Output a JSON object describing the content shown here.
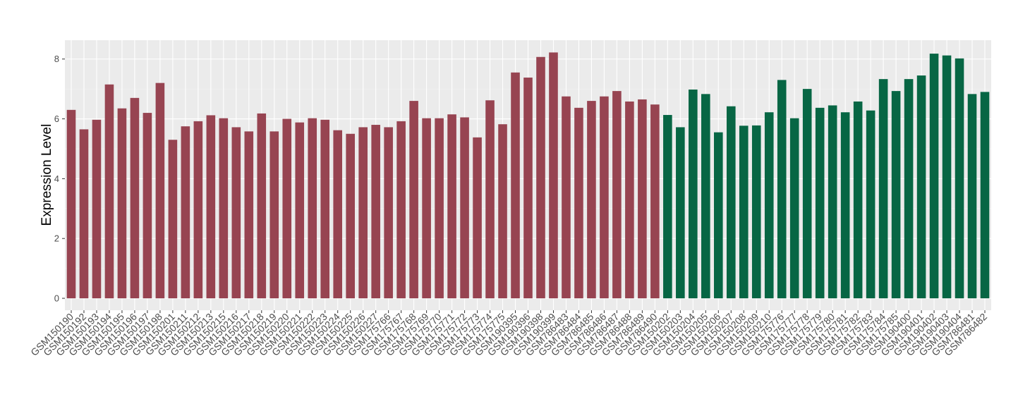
{
  "chart_data": {
    "type": "bar",
    "y_label": "Expression Level",
    "categories": [
      "GSM150190",
      "GSM150192",
      "GSM150193",
      "GSM150194",
      "GSM150195",
      "GSM150196",
      "GSM150197",
      "GSM150198",
      "GSM150201",
      "GSM150211",
      "GSM150212",
      "GSM150213",
      "GSM150215",
      "GSM150216",
      "GSM150217",
      "GSM150218",
      "GSM150219",
      "GSM150220",
      "GSM150221",
      "GSM150222",
      "GSM150223",
      "GSM150224",
      "GSM150225",
      "GSM150226",
      "GSM150227",
      "GSM175766",
      "GSM175767",
      "GSM175768",
      "GSM175769",
      "GSM175770",
      "GSM175771",
      "GSM175772",
      "GSM175773",
      "GSM175774",
      "GSM175775",
      "GSM190395",
      "GSM190396",
      "GSM190398",
      "GSM190399",
      "GSM786483",
      "GSM786484",
      "GSM786485",
      "GSM786486",
      "GSM786487",
      "GSM786488",
      "GSM786489",
      "GSM786490",
      "GSM150202",
      "GSM150203",
      "GSM150204",
      "GSM150205",
      "GSM150206",
      "GSM150207",
      "GSM150208",
      "GSM150209",
      "GSM150210",
      "GSM175776",
      "GSM175777",
      "GSM175778",
      "GSM175779",
      "GSM175780",
      "GSM175781",
      "GSM175782",
      "GSM175783",
      "GSM175784",
      "GSM175785",
      "GSM190400",
      "GSM190401",
      "GSM190402",
      "GSM190403",
      "GSM190404",
      "GSM786481",
      "GSM786482"
    ],
    "series": [
      {
        "color": "#974451",
        "values": [
          6.3,
          5.65,
          5.97,
          7.15,
          6.35,
          6.7,
          6.2,
          7.2,
          5.3,
          5.75,
          5.92,
          6.12,
          6.02,
          5.72,
          5.58,
          6.18,
          5.58,
          6.0,
          5.88,
          6.02,
          5.97,
          5.62,
          5.5,
          5.72,
          5.8,
          5.72,
          5.92,
          6.6,
          6.02,
          6.02,
          6.15,
          6.05,
          5.38,
          6.62,
          5.82,
          7.55,
          7.38,
          8.07,
          8.22,
          6.75,
          6.37,
          6.6,
          6.75,
          6.93,
          6.58,
          6.65,
          6.48,
          null,
          null,
          null,
          null,
          null,
          null,
          null,
          null,
          null,
          null,
          null,
          null,
          null,
          null,
          null,
          null,
          null,
          null,
          null,
          null,
          null,
          null,
          null,
          null,
          null,
          null
        ]
      },
      {
        "color": "#076644",
        "values": [
          null,
          null,
          null,
          null,
          null,
          null,
          null,
          null,
          null,
          null,
          null,
          null,
          null,
          null,
          null,
          null,
          null,
          null,
          null,
          null,
          null,
          null,
          null,
          null,
          null,
          null,
          null,
          null,
          null,
          null,
          null,
          null,
          null,
          null,
          null,
          null,
          null,
          null,
          null,
          null,
          null,
          null,
          null,
          null,
          null,
          null,
          null,
          6.13,
          5.72,
          6.98,
          6.83,
          5.55,
          6.42,
          5.77,
          5.78,
          6.22,
          7.3,
          6.02,
          7.0,
          6.37,
          6.45,
          6.22,
          6.58,
          6.28,
          7.33,
          6.93,
          7.33,
          7.45,
          8.18,
          8.12,
          8.02,
          6.83,
          6.9
        ]
      }
    ],
    "ylim": [
      -0.4,
      8.63
    ],
    "yticks": [
      0,
      2,
      4,
      6,
      8
    ],
    "grid": true
  }
}
